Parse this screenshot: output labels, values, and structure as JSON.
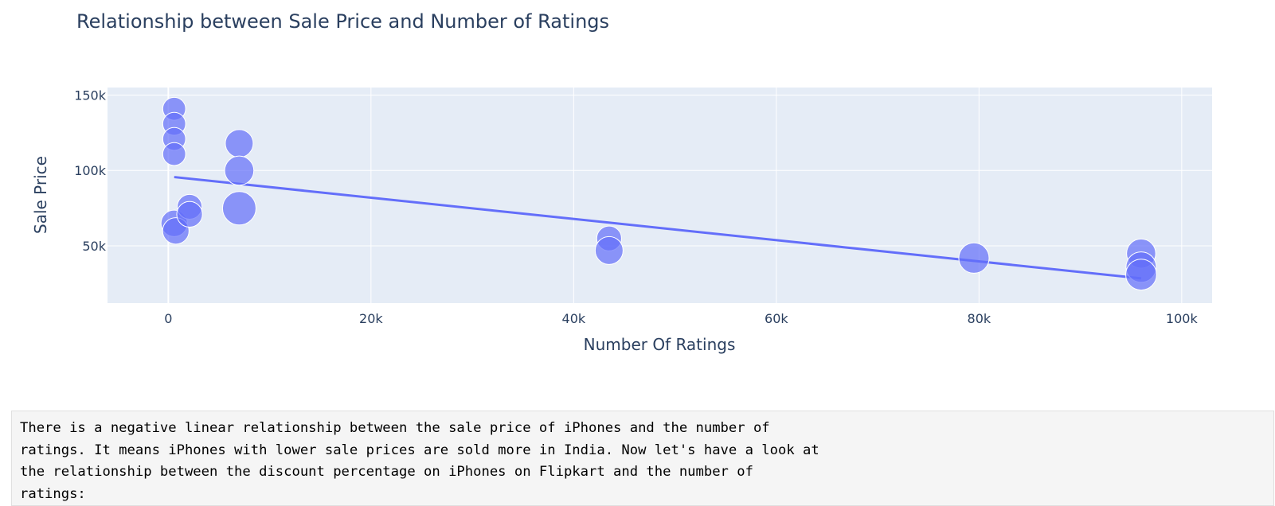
{
  "chart_data": {
    "type": "scatter",
    "title": "Relationship between Sale Price and Number of Ratings",
    "xlabel": "Number Of Ratings",
    "ylabel": "Sale Price",
    "xlim": [
      -6000,
      103000
    ],
    "ylim": [
      12000,
      155000
    ],
    "x_ticks": [
      0,
      20000,
      40000,
      60000,
      80000,
      100000
    ],
    "x_tick_labels": [
      "0",
      "20k",
      "40k",
      "60k",
      "80k",
      "100k"
    ],
    "y_ticks": [
      50000,
      100000,
      150000
    ],
    "y_tick_labels": [
      "50k",
      "100k",
      "150k"
    ],
    "grid": true,
    "marker_color": "#636efa",
    "background_color": "#e5ecf6",
    "points": [
      {
        "x": 580,
        "y": 140900,
        "size": 2
      },
      {
        "x": 580,
        "y": 130900,
        "size": 2
      },
      {
        "x": 580,
        "y": 120900,
        "size": 2
      },
      {
        "x": 580,
        "y": 110900,
        "size": 2
      },
      {
        "x": 580,
        "y": 64900,
        "size": 4
      },
      {
        "x": 740,
        "y": 59900,
        "size": 4
      },
      {
        "x": 2100,
        "y": 75900,
        "size": 3
      },
      {
        "x": 2100,
        "y": 70900,
        "size": 3.5
      },
      {
        "x": 7000,
        "y": 117900,
        "size": 5
      },
      {
        "x": 7000,
        "y": 99900,
        "size": 6
      },
      {
        "x": 7000,
        "y": 74900,
        "size": 10
      },
      {
        "x": 43500,
        "y": 54900,
        "size": 3
      },
      {
        "x": 43500,
        "y": 46900,
        "size": 5
      },
      {
        "x": 79500,
        "y": 41900,
        "size": 7
      },
      {
        "x": 96000,
        "y": 44900,
        "size": 6
      },
      {
        "x": 96000,
        "y": 35900,
        "size": 7
      },
      {
        "x": 96000,
        "y": 30900,
        "size": 7.5
      }
    ],
    "trendline": {
      "x": [
        580,
        96000
      ],
      "y": [
        95600,
        28400
      ]
    }
  },
  "cell": {
    "lines": [
      "There is a negative linear relationship between the sale price of iPhones and the number of",
      "ratings. It means iPhones with lower sale prices are sold more in India. Now let's have a look at",
      "the relationship between the discount percentage on iPhones on Flipkart and the number of",
      "ratings:"
    ]
  }
}
